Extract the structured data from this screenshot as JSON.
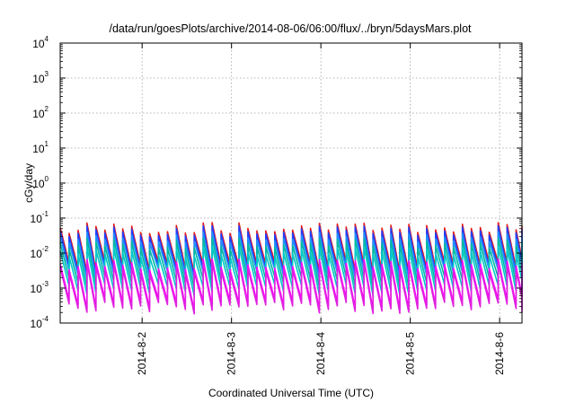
{
  "chart_data": {
    "type": "line",
    "title": "/data/run/goesPlots/archive/2014-08-06/06:00/flux/../bryn/5daysMars.plot",
    "xlabel": "Coordinated Universal Time (UTC)",
    "ylabel": "cGy/day",
    "yscale": "log",
    "ylim": [
      0.0001,
      10000
    ],
    "xlim": [
      "2014-08-01 02:00",
      "2014-08-06 06:00"
    ],
    "grid": true,
    "y_ticks": [
      {
        "base": "10",
        "exp": "4"
      },
      {
        "base": "10",
        "exp": "3"
      },
      {
        "base": "10",
        "exp": "2"
      },
      {
        "base": "10",
        "exp": "1"
      },
      {
        "base": "10",
        "exp": "0"
      },
      {
        "base": "10",
        "exp": "-1"
      },
      {
        "base": "10",
        "exp": "-2"
      },
      {
        "base": "10",
        "exp": "-3"
      },
      {
        "base": "10",
        "exp": "-4"
      }
    ],
    "x_ticks": [
      "2014-8-2",
      "2014-8-3",
      "2014-8-4",
      "2014-8-5",
      "2014-8-6"
    ],
    "sawtooth_period_hours": 2.4,
    "series": [
      {
        "color": "#e41a1c",
        "peak": 0.055,
        "trough": 0.004
      },
      {
        "color": "#1f3fff",
        "peak": 0.045,
        "trough": 0.003
      },
      {
        "color": "#1e90ff",
        "peak": 0.03,
        "trough": 0.0025
      },
      {
        "color": "#00b8a0",
        "peak": 0.02,
        "trough": 0.0015
      },
      {
        "color": "#00c8c8",
        "peak": 0.012,
        "trough": 0.0009
      },
      {
        "color": "#ff00ff",
        "peak": 0.005,
        "trough": 0.00035
      },
      {
        "color": "#e020e0",
        "peak": 0.004,
        "trough": 0.00028
      }
    ]
  }
}
